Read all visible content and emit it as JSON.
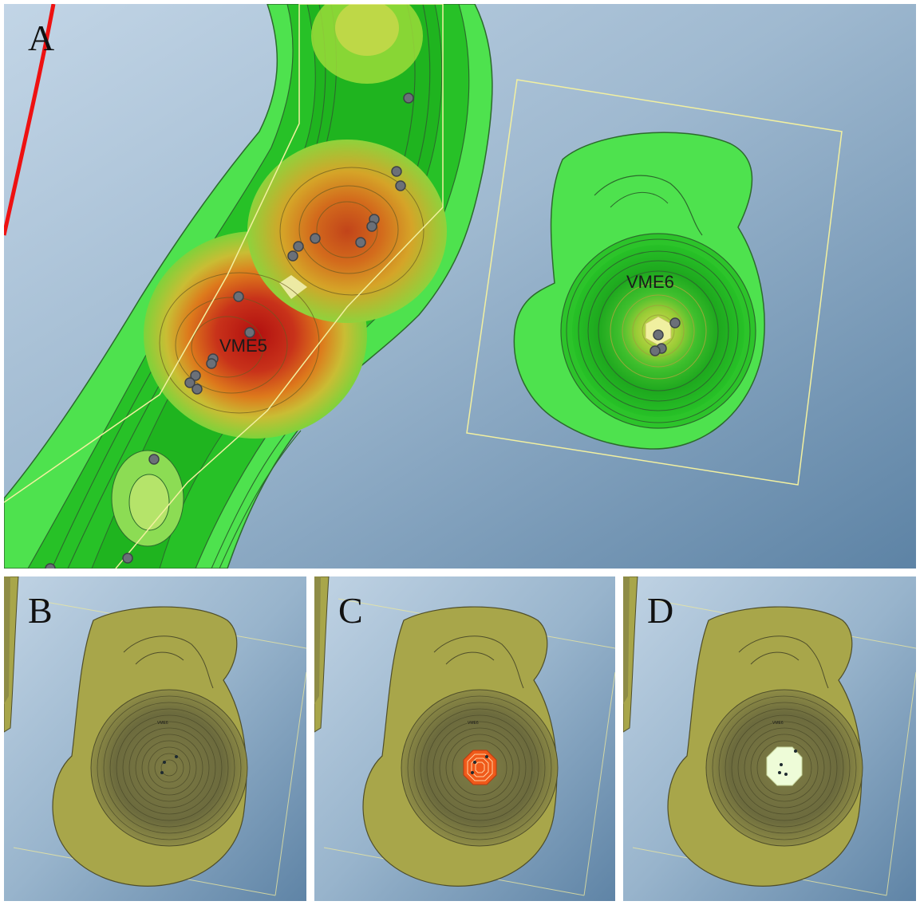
{
  "panels": [
    {
      "id": "A",
      "letter": "A",
      "labels": [
        "VME5",
        "VME6"
      ]
    },
    {
      "id": "B",
      "letter": "B",
      "labels": [
        "VME6"
      ]
    },
    {
      "id": "C",
      "letter": "C",
      "labels": [
        "VME6"
      ]
    },
    {
      "id": "D",
      "letter": "D",
      "labels": [
        "VME6"
      ]
    }
  ],
  "colors": {
    "background_deep": "#5f84a6",
    "background_light": "#b7cde0",
    "density_low": "#4ee24e",
    "density_mid": "#1fbf1f",
    "density_high_yellow": "#c6c63a",
    "density_orange": "#d9861e",
    "density_peak": "#b51313",
    "contour_line": "#2c6a2c",
    "box_outline": "#f2f0a0",
    "boundary_line": "#ee1111",
    "sample_point": "#6b7078",
    "olive_fill": "#a8a64a",
    "olive_dark": "#6f6e3a",
    "highlight_orange": "#f05a1a",
    "highlight_pale": "#eefcd8"
  }
}
